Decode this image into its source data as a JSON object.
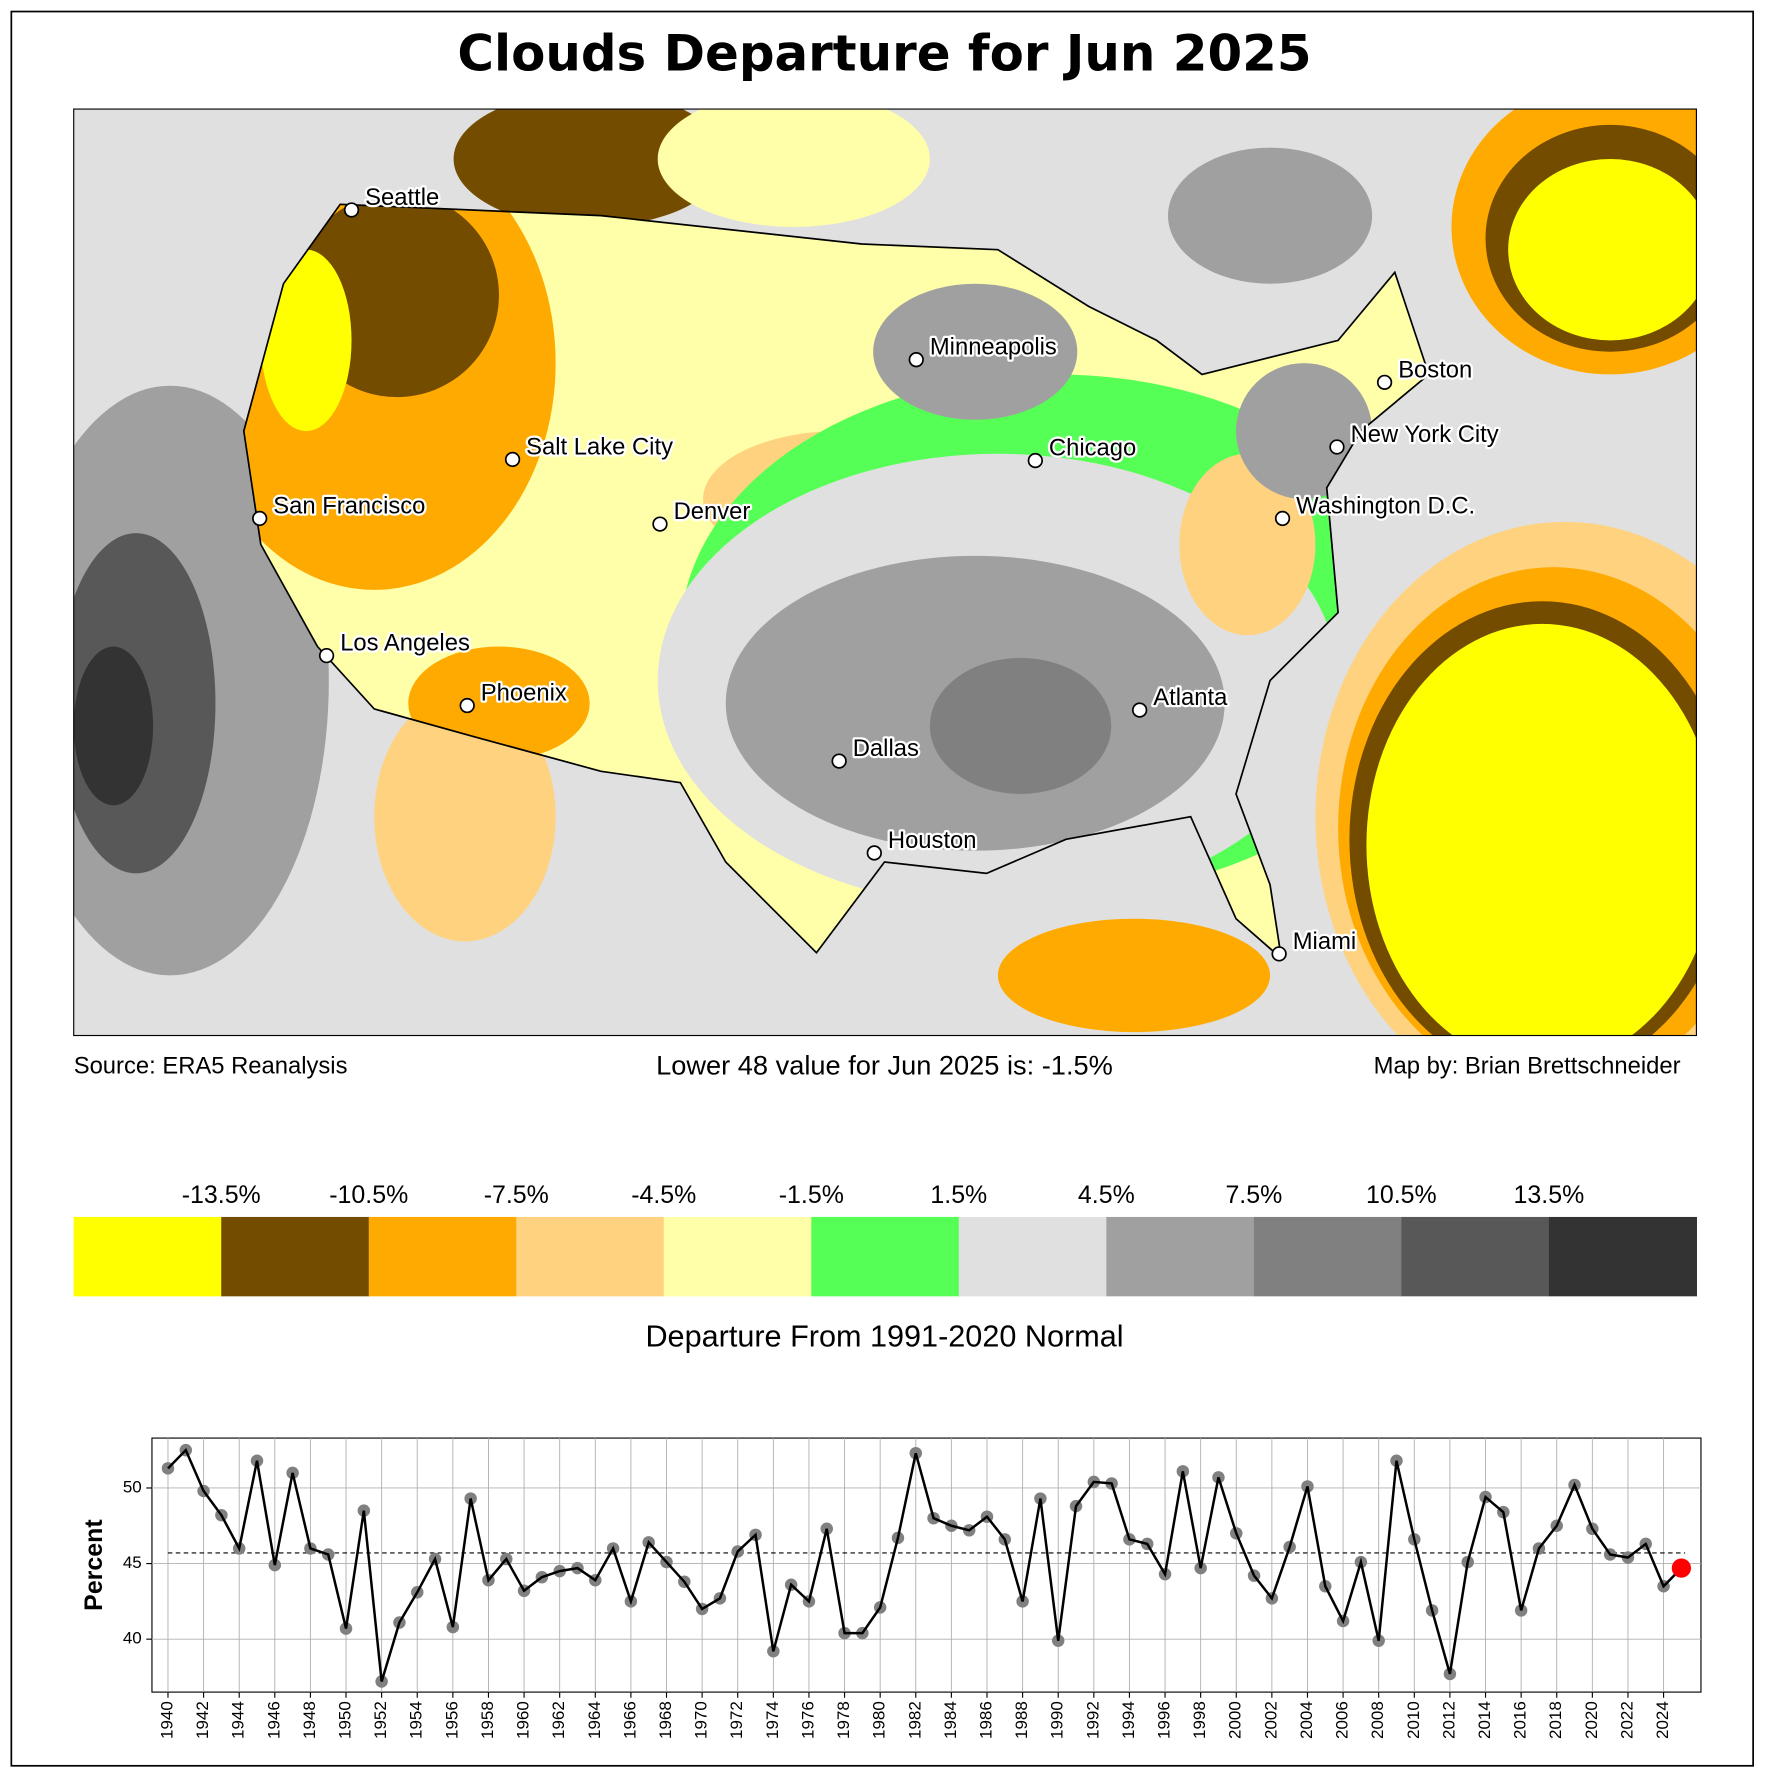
{
  "title": "Clouds Departure for Jun 2025",
  "source": "Source: ERA5 Reanalysis",
  "lower48": "Lower 48 value for Jun 2025 is: -1.5%",
  "credit": "Map by: Brian Brettschneider",
  "map": {
    "cities": [
      "Seattle",
      "San Francisco",
      "Los Angeles",
      "Phoenix",
      "Salt Lake City",
      "Denver",
      "Dallas",
      "Houston",
      "Minneapolis",
      "Chicago",
      "Atlanta",
      "Miami",
      "Washington D.C.",
      "New York City",
      "Boston"
    ]
  },
  "colorbar": {
    "label": "Departure From 1991-2020 Normal",
    "lim": [
      -16.5,
      16.5
    ],
    "colors": [
      "#ffff00",
      "#734c00",
      "#ffaa00",
      "#ffd280",
      "#ffffaa",
      "#55ff55",
      "#e0e0e0",
      "#a0a0a0",
      "#808080",
      "#585858",
      "#333333"
    ],
    "ticks": [
      {
        "value": -13.5,
        "label": "-13.5%"
      },
      {
        "value": -10.5,
        "label": "-10.5%"
      },
      {
        "value": -7.5,
        "label": "-7.5%"
      },
      {
        "value": -4.5,
        "label": "-4.5%"
      },
      {
        "value": -1.5,
        "label": "-1.5%"
      },
      {
        "value": 1.5,
        "label": "1.5%"
      },
      {
        "value": 4.5,
        "label": "4.5%"
      },
      {
        "value": 7.5,
        "label": "7.5%"
      },
      {
        "value": 10.5,
        "label": "10.5%"
      },
      {
        "value": 13.5,
        "label": "13.5%"
      }
    ]
  },
  "chart_data": {
    "type": "line",
    "ylabel": "Percent",
    "x": [
      1940,
      1941,
      1942,
      1943,
      1944,
      1945,
      1946,
      1947,
      1948,
      1949,
      1950,
      1951,
      1952,
      1953,
      1954,
      1955,
      1956,
      1957,
      1958,
      1959,
      1960,
      1961,
      1962,
      1963,
      1964,
      1965,
      1966,
      1967,
      1968,
      1969,
      1970,
      1971,
      1972,
      1973,
      1974,
      1975,
      1976,
      1977,
      1978,
      1979,
      1980,
      1981,
      1982,
      1983,
      1984,
      1985,
      1986,
      1987,
      1988,
      1989,
      1990,
      1991,
      1992,
      1993,
      1994,
      1995,
      1996,
      1997,
      1998,
      1999,
      2000,
      2001,
      2002,
      2003,
      2004,
      2005,
      2006,
      2007,
      2008,
      2009,
      2010,
      2011,
      2012,
      2013,
      2014,
      2015,
      2016,
      2017,
      2018,
      2019,
      2020,
      2021,
      2022,
      2023,
      2024,
      2025
    ],
    "values": [
      51.3,
      52.5,
      49.8,
      48.2,
      46.0,
      51.8,
      44.9,
      51.0,
      46.0,
      45.6,
      40.7,
      48.5,
      37.2,
      41.1,
      43.1,
      45.3,
      40.8,
      49.3,
      43.9,
      45.3,
      43.2,
      44.1,
      44.5,
      44.7,
      43.9,
      46.0,
      42.5,
      46.4,
      45.1,
      43.8,
      42.0,
      42.7,
      45.8,
      46.9,
      39.2,
      43.6,
      42.5,
      47.3,
      40.4,
      40.4,
      42.1,
      46.7,
      52.3,
      48.0,
      47.5,
      47.2,
      48.1,
      46.6,
      42.5,
      49.3,
      39.9,
      48.8,
      50.4,
      50.3,
      46.6,
      46.3,
      44.3,
      51.1,
      44.7,
      50.7,
      47.0,
      44.2,
      42.7,
      46.1,
      50.1,
      43.5,
      41.2,
      45.1,
      39.9,
      51.8,
      46.6,
      41.9,
      37.7,
      45.1,
      49.4,
      48.4,
      41.9,
      46.0,
      47.5,
      50.2,
      47.3,
      45.6,
      45.4,
      46.3,
      43.5,
      44.7
    ],
    "color": "#000000",
    "marker_color": "#808080",
    "last_color": "#ff0000",
    "mean": 45.7,
    "xlim": [
      1939.1,
      2026.1
    ],
    "ylim": [
      36.5,
      53.3
    ],
    "xticks": [
      1940,
      1942,
      1944,
      1946,
      1948,
      1950,
      1952,
      1954,
      1956,
      1958,
      1960,
      1962,
      1964,
      1966,
      1968,
      1970,
      1972,
      1974,
      1976,
      1978,
      1980,
      1982,
      1984,
      1986,
      1988,
      1990,
      1992,
      1994,
      1996,
      1998,
      2000,
      2002,
      2004,
      2006,
      2008,
      2010,
      2012,
      2014,
      2016,
      2018,
      2020,
      2022,
      2024
    ],
    "yticks": [
      40,
      45,
      50
    ],
    "grid": true
  }
}
